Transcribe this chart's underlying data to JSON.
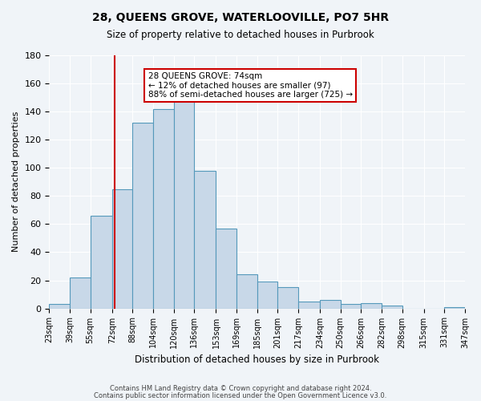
{
  "title": "28, QUEENS GROVE, WATERLOOVILLE, PO7 5HR",
  "subtitle": "Size of property relative to detached houses in Purbrook",
  "xlabel": "Distribution of detached houses by size in Purbrook",
  "ylabel": "Number of detached properties",
  "bin_edges": [
    23,
    39,
    55,
    72,
    88,
    104,
    120,
    136,
    153,
    169,
    185,
    201,
    217,
    234,
    250,
    266,
    282,
    298,
    315,
    331,
    347
  ],
  "bin_values": [
    3,
    22,
    66,
    85,
    132,
    142,
    150,
    98,
    57,
    24,
    19,
    15,
    5,
    6,
    3,
    4,
    2,
    0,
    0,
    1
  ],
  "bar_color": "#c8d8e8",
  "bar_edge_color": "#5599bb",
  "vline_x": 74,
  "vline_color": "#cc0000",
  "annotation_text": "28 QUEENS GROVE: 74sqm\n← 12% of detached houses are smaller (97)\n88% of semi-detached houses are larger (725) →",
  "annotation_box_color": "#ffffff",
  "annotation_box_edge_color": "#cc0000",
  "ylim": [
    0,
    180
  ],
  "yticks": [
    0,
    20,
    40,
    60,
    80,
    100,
    120,
    140,
    160,
    180
  ],
  "tick_labels": [
    "23sqm",
    "39sqm",
    "55sqm",
    "72sqm",
    "88sqm",
    "104sqm",
    "120sqm",
    "136sqm",
    "153sqm",
    "169sqm",
    "185sqm",
    "201sqm",
    "217sqm",
    "234sqm",
    "250sqm",
    "266sqm",
    "282sqm",
    "298sqm",
    "315sqm",
    "331sqm",
    "347sqm"
  ],
  "footer1": "Contains HM Land Registry data © Crown copyright and database right 2024.",
  "footer2": "Contains public sector information licensed under the Open Government Licence v3.0.",
  "background_color": "#f0f4f8"
}
